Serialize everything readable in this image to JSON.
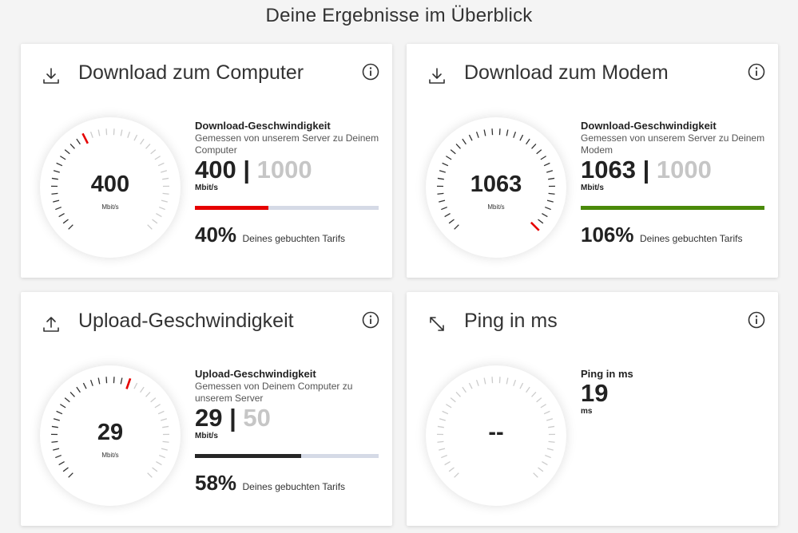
{
  "page": {
    "title": "Deine Ergebnisse im Überblick"
  },
  "cards": {
    "dl_computer": {
      "title": "Download zum Computer",
      "gauge_value": "400",
      "gauge_unit": "Mbit/s",
      "gauge_fraction": 0.4,
      "heading": "Download-Geschwindigkeit",
      "subtext": "Gemessen von unserem Server zu Deinem Computer",
      "measured": "400",
      "separator": "|",
      "booked": "1000",
      "unit": "Mbit/s",
      "progress": 0.4,
      "bar_color": "#e60000",
      "percent": "40%",
      "percent_text": "Deines gebuchten Tarifs"
    },
    "dl_modem": {
      "title": "Download zum Modem",
      "gauge_value": "1063",
      "gauge_unit": "Mbit/s",
      "gauge_fraction": 1.0,
      "heading": "Download-Geschwindigkeit",
      "subtext": "Gemessen von unserem Server zu Deinem Modem",
      "measured": "1063",
      "separator": "|",
      "booked": "1000",
      "unit": "Mbit/s",
      "progress": 1.0,
      "bar_color": "#4a8a0a",
      "percent": "106%",
      "percent_text": "Deines gebuchten Tarifs"
    },
    "upload": {
      "title": "Upload-Geschwindigkeit",
      "gauge_value": "29",
      "gauge_unit": "Mbit/s",
      "gauge_fraction": 0.58,
      "heading": "Upload-Geschwindigkeit",
      "subtext": "Gemessen von Deinem Computer zu unserem Server",
      "measured": "29",
      "separator": "|",
      "booked": "50",
      "unit": "Mbit/s",
      "progress": 0.58,
      "bar_color": "#262626",
      "percent": "58%",
      "percent_text": "Deines gebuchten Tarifs"
    },
    "ping": {
      "title": "Ping in ms",
      "gauge_value": "--",
      "heading": "Ping in ms",
      "value": "19",
      "unit": "ms"
    }
  },
  "icons": {
    "download": "download-icon",
    "upload": "upload-icon",
    "ping": "arrows-diagonal-icon",
    "info": "info-icon"
  },
  "colors": {
    "accent_red": "#e60000",
    "tick_gray": "#333333",
    "tick_light": "#cccccc"
  }
}
